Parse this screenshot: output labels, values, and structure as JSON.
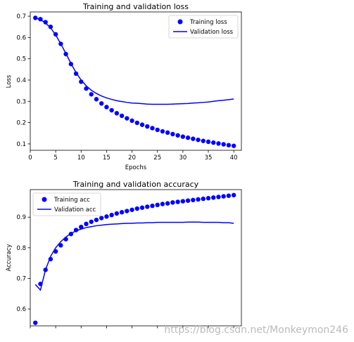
{
  "chart_data": [
    {
      "type": "scatter",
      "title": "Training and validation loss",
      "xlabel": "Epochs",
      "ylabel": "Loss",
      "xlim": [
        0,
        41.5
      ],
      "ylim": [
        0.07,
        0.72
      ],
      "xticks": [
        0,
        5,
        10,
        15,
        20,
        25,
        30,
        35,
        40
      ],
      "yticks": [
        0.1,
        0.2,
        0.3,
        0.4,
        0.5,
        0.6,
        0.7
      ],
      "grid": false,
      "legend_position": "top-right",
      "x": [
        1,
        2,
        3,
        4,
        5,
        6,
        7,
        8,
        9,
        10,
        11,
        12,
        13,
        14,
        15,
        16,
        17,
        18,
        19,
        20,
        21,
        22,
        23,
        24,
        25,
        26,
        27,
        28,
        29,
        30,
        31,
        32,
        33,
        34,
        35,
        36,
        37,
        38,
        39,
        40
      ],
      "series": [
        {
          "name": "Training loss",
          "style": "dots",
          "color": "#0000ff",
          "values": [
            0.692,
            0.686,
            0.672,
            0.65,
            0.615,
            0.57,
            0.522,
            0.475,
            0.43,
            0.392,
            0.36,
            0.333,
            0.31,
            0.29,
            0.273,
            0.258,
            0.244,
            0.232,
            0.22,
            0.209,
            0.199,
            0.19,
            0.182,
            0.174,
            0.166,
            0.159,
            0.153,
            0.146,
            0.14,
            0.134,
            0.129,
            0.124,
            0.119,
            0.114,
            0.11,
            0.106,
            0.102,
            0.098,
            0.094,
            0.091
          ]
        },
        {
          "name": "Validation loss",
          "style": "line",
          "color": "#0000ff",
          "values": [
            0.692,
            0.684,
            0.668,
            0.645,
            0.612,
            0.57,
            0.525,
            0.478,
            0.435,
            0.4,
            0.373,
            0.352,
            0.337,
            0.325,
            0.316,
            0.309,
            0.303,
            0.299,
            0.295,
            0.292,
            0.291,
            0.289,
            0.287,
            0.286,
            0.286,
            0.286,
            0.286,
            0.287,
            0.288,
            0.289,
            0.29,
            0.292,
            0.293,
            0.295,
            0.297,
            0.3,
            0.303,
            0.305,
            0.308,
            0.311
          ]
        }
      ]
    },
    {
      "type": "scatter",
      "title": "Training and validation accuracy",
      "xlabel": "",
      "ylabel": "Accuracy",
      "xlim": [
        0,
        41.5
      ],
      "ylim": [
        0.545,
        0.99
      ],
      "xticks": [
        0,
        5,
        10,
        15,
        20,
        25,
        30,
        35,
        40
      ],
      "yticks": [
        0.6,
        0.7,
        0.8,
        0.9
      ],
      "grid": false,
      "legend_position": "top-left",
      "x": [
        1,
        2,
        3,
        4,
        5,
        6,
        7,
        8,
        9,
        10,
        11,
        12,
        13,
        14,
        15,
        16,
        17,
        18,
        19,
        20,
        21,
        22,
        23,
        24,
        25,
        26,
        27,
        28,
        29,
        30,
        31,
        32,
        33,
        34,
        35,
        36,
        37,
        38,
        39,
        40
      ],
      "series": [
        {
          "name": "Training acc",
          "style": "dots",
          "color": "#0000ff",
          "values": [
            0.555,
            0.682,
            0.728,
            0.763,
            0.788,
            0.808,
            0.828,
            0.845,
            0.858,
            0.868,
            0.878,
            0.885,
            0.891,
            0.897,
            0.902,
            0.907,
            0.912,
            0.916,
            0.92,
            0.924,
            0.928,
            0.931,
            0.934,
            0.937,
            0.94,
            0.943,
            0.945,
            0.948,
            0.95,
            0.952,
            0.954,
            0.956,
            0.958,
            0.96,
            0.962,
            0.964,
            0.966,
            0.968,
            0.97,
            0.972
          ]
        },
        {
          "name": "Validation acc",
          "style": "line",
          "color": "#0000ff",
          "values": [
            0.68,
            0.662,
            0.728,
            0.772,
            0.8,
            0.82,
            0.835,
            0.847,
            0.855,
            0.861,
            0.866,
            0.869,
            0.872,
            0.874,
            0.876,
            0.877,
            0.878,
            0.879,
            0.88,
            0.88,
            0.881,
            0.881,
            0.882,
            0.882,
            0.883,
            0.883,
            0.883,
            0.883,
            0.883,
            0.883,
            0.884,
            0.884,
            0.884,
            0.883,
            0.883,
            0.883,
            0.883,
            0.882,
            0.882,
            0.88
          ]
        }
      ]
    }
  ],
  "watermark": "https://blog.csdn.net/Monkeymon246"
}
